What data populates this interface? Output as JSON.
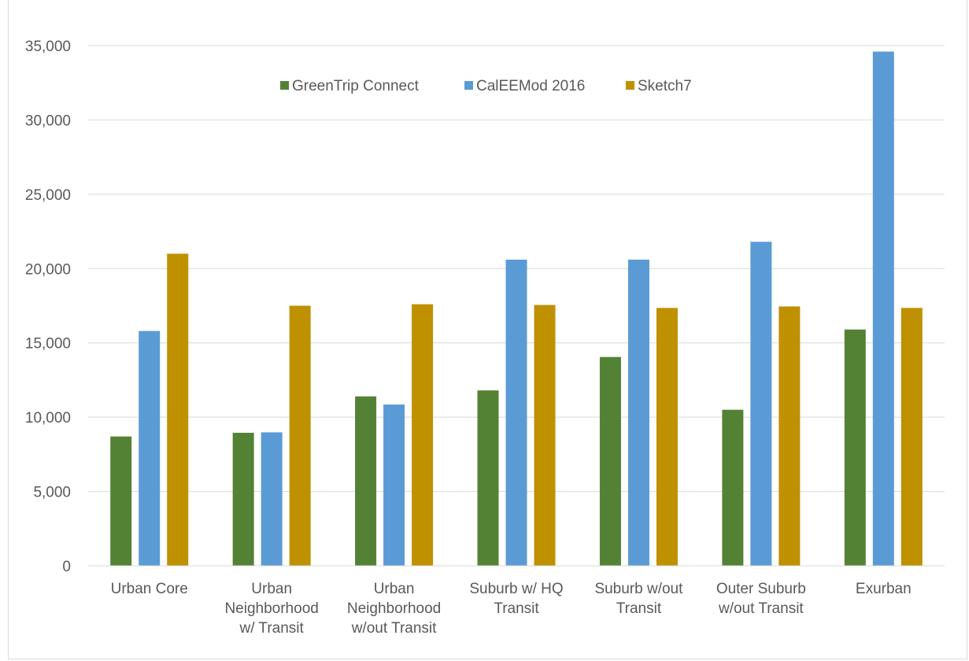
{
  "chart_data": {
    "type": "bar",
    "title": "",
    "xlabel": "",
    "ylabel": "",
    "ylim": [
      0,
      35000
    ],
    "yticks": [
      0,
      5000,
      10000,
      15000,
      20000,
      25000,
      30000,
      35000
    ],
    "ytick_labels": [
      "0",
      "5,000",
      "10,000",
      "15,000",
      "20,000",
      "25,000",
      "30,000",
      "35,000"
    ],
    "grid": true,
    "legend_position": "top-center",
    "categories": [
      [
        "Urban Core"
      ],
      [
        "Urban",
        "Neighborhood",
        "w/ Transit"
      ],
      [
        "Urban",
        "Neighborhood",
        "w/out Transit"
      ],
      [
        "Suburb w/ HQ",
        "Transit"
      ],
      [
        "Suburb w/out",
        "Transit"
      ],
      [
        "Outer Suburb",
        "w/out Transit"
      ],
      [
        "Exurban"
      ]
    ],
    "series": [
      {
        "name": "GreenTrip Connect",
        "color": "#548235",
        "values": [
          8700,
          8950,
          11400,
          11800,
          14050,
          10500,
          15900
        ]
      },
      {
        "name": "CalEEMod 2016",
        "color": "#5b9bd5",
        "values": [
          15800,
          8980,
          10850,
          20600,
          20600,
          21800,
          34600
        ]
      },
      {
        "name": "Sketch7",
        "color": "#bf9000",
        "values": [
          21000,
          17500,
          17600,
          17550,
          17350,
          17450,
          17350
        ]
      }
    ]
  }
}
